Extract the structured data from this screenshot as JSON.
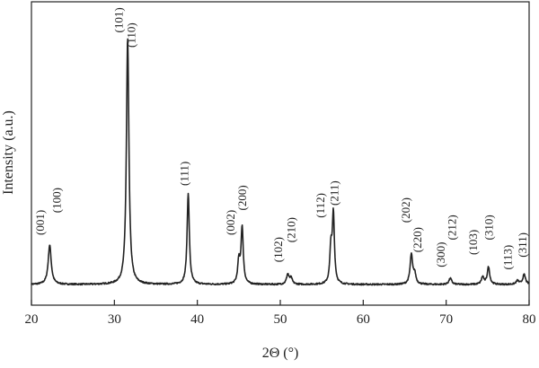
{
  "chart_data": {
    "type": "line",
    "title": "",
    "xlabel": "2Θ (°)",
    "ylabel": "Intensity (a.u.)",
    "xlim": [
      20,
      80
    ],
    "x_ticks": [
      20,
      30,
      40,
      50,
      60,
      70,
      80
    ],
    "y_ticks_shown": false,
    "grid": false,
    "legend": "none",
    "line_color": "#222222",
    "baseline": 0,
    "series": [
      {
        "values_description_free": true,
        "peaks": [
          {
            "x": 22.2,
            "y": 0.16,
            "width": 0.22
          },
          {
            "x": 31.6,
            "y": 1.0,
            "width": 0.18
          },
          {
            "x": 38.9,
            "y": 0.37,
            "width": 0.16
          },
          {
            "x": 45.0,
            "y": 0.09,
            "width": 0.16
          },
          {
            "x": 45.4,
            "y": 0.23,
            "width": 0.16
          },
          {
            "x": 50.9,
            "y": 0.04,
            "width": 0.18
          },
          {
            "x": 51.3,
            "y": 0.025,
            "width": 0.18
          },
          {
            "x": 56.1,
            "y": 0.14,
            "width": 0.15
          },
          {
            "x": 56.4,
            "y": 0.28,
            "width": 0.15
          },
          {
            "x": 65.8,
            "y": 0.12,
            "width": 0.18
          },
          {
            "x": 66.2,
            "y": 0.04,
            "width": 0.18
          },
          {
            "x": 70.5,
            "y": 0.025,
            "width": 0.2
          },
          {
            "x": 74.4,
            "y": 0.03,
            "width": 0.18
          },
          {
            "x": 75.1,
            "y": 0.07,
            "width": 0.18
          },
          {
            "x": 78.6,
            "y": 0.015,
            "width": 0.2
          },
          {
            "x": 79.4,
            "y": 0.04,
            "width": 0.2
          }
        ]
      }
    ],
    "annotations": [
      {
        "text": "(001)",
        "x": 21.5,
        "y": 0.2
      },
      {
        "text": "(100)",
        "x": 23.5,
        "y": 0.29
      },
      {
        "text": "(101)",
        "x": 31.0,
        "y": 1.02
      },
      {
        "text": "(110)",
        "x": 32.5,
        "y": 0.96
      },
      {
        "text": "(111)",
        "x": 38.9,
        "y": 0.4
      },
      {
        "text": "(002)",
        "x": 44.5,
        "y": 0.2
      },
      {
        "text": "(200)",
        "x": 45.9,
        "y": 0.3
      },
      {
        "text": "(102)",
        "x": 50.2,
        "y": 0.09
      },
      {
        "text": "(210)",
        "x": 51.8,
        "y": 0.17
      },
      {
        "text": "(112)",
        "x": 55.3,
        "y": 0.27
      },
      {
        "text": "(211)",
        "x": 57.0,
        "y": 0.32
      },
      {
        "text": "(202)",
        "x": 65.6,
        "y": 0.25
      },
      {
        "text": "(220)",
        "x": 67.0,
        "y": 0.13
      },
      {
        "text": "(300)",
        "x": 69.8,
        "y": 0.07
      },
      {
        "text": "(212)",
        "x": 71.2,
        "y": 0.18
      },
      {
        "text": "(103)",
        "x": 73.7,
        "y": 0.12
      },
      {
        "text": "(310)",
        "x": 75.6,
        "y": 0.18
      },
      {
        "text": "(113)",
        "x": 77.9,
        "y": 0.06
      },
      {
        "text": "(311)",
        "x": 79.7,
        "y": 0.11
      }
    ]
  }
}
